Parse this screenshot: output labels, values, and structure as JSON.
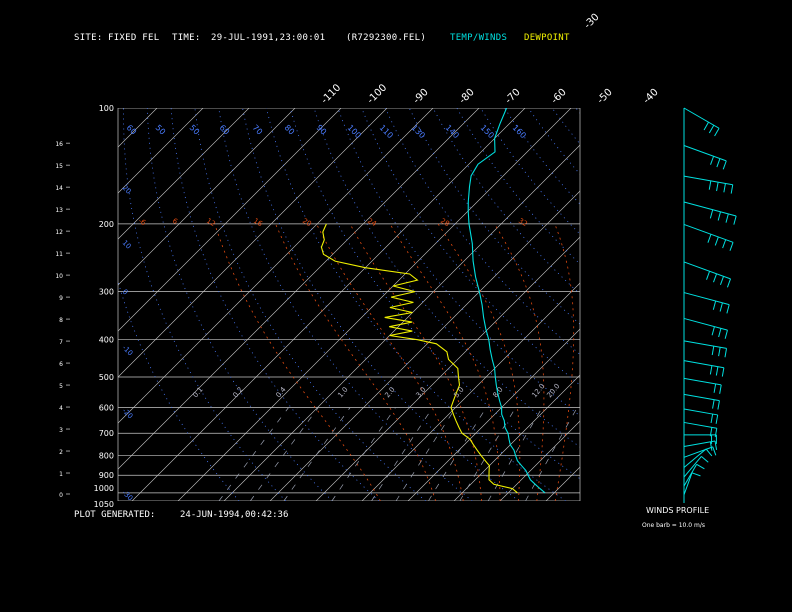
{
  "header": {
    "site_label": "SITE:",
    "site_value": "FIXED FEL",
    "time_label": "TIME:",
    "time_value": "29-JUL-1991,23:00:01",
    "file": "(R7292300.FEL)",
    "legend_temp": "TEMP/WINDS",
    "legend_dew": "DEWPOINT"
  },
  "footer": {
    "generated_label": "PLOT GENERATED:",
    "generated_value": "24-JUN-1994,00:42:36",
    "winds_title": "WINDS PROFILE",
    "barb_note": "One barb = 10.0 m/s"
  },
  "colors": {
    "background": "#000000",
    "temp": "#00e0e0",
    "dewpoint": "#f0f000",
    "isobar": "#c8c8c8",
    "isotherm": "#c8c8c8",
    "dry_adiabat": "#4a7cff",
    "moist_adiabat": "#e04a10",
    "mixing_ratio": "#ff8800",
    "text": "#ffffff"
  },
  "chart_data": {
    "type": "line",
    "title": "",
    "y_axis": "pressure (mb), log scale",
    "pressure_range": [
      1050,
      100
    ],
    "pressure_ticks": [
      "100",
      "200",
      "300",
      "400",
      "500",
      "600",
      "700",
      "800",
      "900",
      "1000",
      "1050"
    ],
    "height_ticks": [
      "0",
      "1",
      "2",
      "3",
      "4",
      "5",
      "6",
      "7",
      "8",
      "9",
      "10",
      "11",
      "12",
      "13",
      "14",
      "15",
      "16"
    ],
    "isotherm_labels_top": [
      "-110",
      "-100",
      "-90",
      "-80",
      "-70",
      "-60",
      "-50",
      "-40"
    ],
    "isotherm_labels_right": [
      "-30",
      "-20",
      "-10",
      "0",
      "10",
      "20",
      "30"
    ],
    "dry_adiabat_labels": [
      "60",
      "50",
      "50",
      "60",
      "70",
      "80",
      "90",
      "100",
      "110",
      "130",
      "140",
      "150",
      "160"
    ],
    "dry_adiabat_left_labels": [
      "20",
      "10",
      "0",
      "-10",
      "-20",
      "-30"
    ],
    "moist_adiabat_labels": [
      "-6",
      "6",
      "12",
      "16",
      "20",
      "24",
      "28",
      "32"
    ],
    "mixing_ratio_labels": [
      "0.1",
      "0.2",
      "0.4",
      "1.0",
      "2.0",
      "3.0",
      "5.0",
      "8.0",
      "12.0",
      "20.0"
    ],
    "series": [
      {
        "name": "TEMP/WINDS",
        "points_p_t": [
          [
            1000,
            28
          ],
          [
            975,
            26
          ],
          [
            950,
            24
          ],
          [
            925,
            22
          ],
          [
            900,
            20.5
          ],
          [
            875,
            19
          ],
          [
            850,
            17
          ],
          [
            825,
            15
          ],
          [
            800,
            13.5
          ],
          [
            775,
            12
          ],
          [
            750,
            10
          ],
          [
            725,
            8.5
          ],
          [
            700,
            7
          ],
          [
            675,
            5
          ],
          [
            650,
            3.5
          ],
          [
            625,
            1.5
          ],
          [
            600,
            0
          ],
          [
            575,
            -2
          ],
          [
            550,
            -4
          ],
          [
            525,
            -6
          ],
          [
            500,
            -8
          ],
          [
            475,
            -10
          ],
          [
            450,
            -12.5
          ],
          [
            425,
            -15
          ],
          [
            400,
            -17.5
          ],
          [
            375,
            -20.5
          ],
          [
            350,
            -23.5
          ],
          [
            325,
            -26.5
          ],
          [
            300,
            -30
          ],
          [
            275,
            -34
          ],
          [
            250,
            -38
          ],
          [
            225,
            -42
          ],
          [
            200,
            -47
          ],
          [
            185,
            -50
          ],
          [
            175,
            -52
          ],
          [
            160,
            -55
          ],
          [
            150,
            -57
          ],
          [
            140,
            -58
          ],
          [
            130,
            -57
          ],
          [
            120,
            -60
          ],
          [
            110,
            -62
          ],
          [
            100,
            -64
          ]
        ]
      },
      {
        "name": "DEWPOINT",
        "points_p_t": [
          [
            1000,
            22
          ],
          [
            975,
            20
          ],
          [
            950,
            15
          ],
          [
            925,
            13
          ],
          [
            900,
            12
          ],
          [
            875,
            11
          ],
          [
            850,
            10
          ],
          [
            825,
            8
          ],
          [
            800,
            6
          ],
          [
            775,
            4
          ],
          [
            750,
            2
          ],
          [
            725,
            0
          ],
          [
            700,
            -3
          ],
          [
            675,
            -5
          ],
          [
            650,
            -7
          ],
          [
            625,
            -9
          ],
          [
            600,
            -11
          ],
          [
            575,
            -12
          ],
          [
            550,
            -13
          ],
          [
            525,
            -14
          ],
          [
            500,
            -16
          ],
          [
            475,
            -18
          ],
          [
            450,
            -22
          ],
          [
            430,
            -24
          ],
          [
            410,
            -28
          ],
          [
            400,
            -33
          ],
          [
            390,
            -40
          ],
          [
            380,
            -36
          ],
          [
            370,
            -42
          ],
          [
            360,
            -38
          ],
          [
            350,
            -45
          ],
          [
            340,
            -40
          ],
          [
            330,
            -46
          ],
          [
            320,
            -42
          ],
          [
            310,
            -48
          ],
          [
            300,
            -44
          ],
          [
            290,
            -50
          ],
          [
            280,
            -46
          ],
          [
            270,
            -49
          ],
          [
            260,
            -60
          ],
          [
            250,
            -68
          ],
          [
            240,
            -72
          ],
          [
            230,
            -74
          ],
          [
            220,
            -75
          ],
          [
            210,
            -77
          ],
          [
            200,
            -78
          ]
        ]
      }
    ],
    "winds": {
      "units": "m/s",
      "levels": [
        [
          1000,
          200,
          6
        ],
        [
          950,
          210,
          8
        ],
        [
          900,
          220,
          10
        ],
        [
          850,
          230,
          12
        ],
        [
          800,
          250,
          14
        ],
        [
          750,
          260,
          15
        ],
        [
          700,
          270,
          16
        ],
        [
          650,
          280,
          17
        ],
        [
          600,
          280,
          18
        ],
        [
          550,
          280,
          20
        ],
        [
          500,
          280,
          22
        ],
        [
          450,
          280,
          25
        ],
        [
          400,
          280,
          28
        ],
        [
          350,
          285,
          30
        ],
        [
          300,
          285,
          32
        ],
        [
          250,
          290,
          35
        ],
        [
          200,
          290,
          38
        ],
        [
          175,
          285,
          40
        ],
        [
          150,
          280,
          35
        ],
        [
          125,
          290,
          30
        ],
        [
          100,
          300,
          25
        ]
      ]
    }
  }
}
